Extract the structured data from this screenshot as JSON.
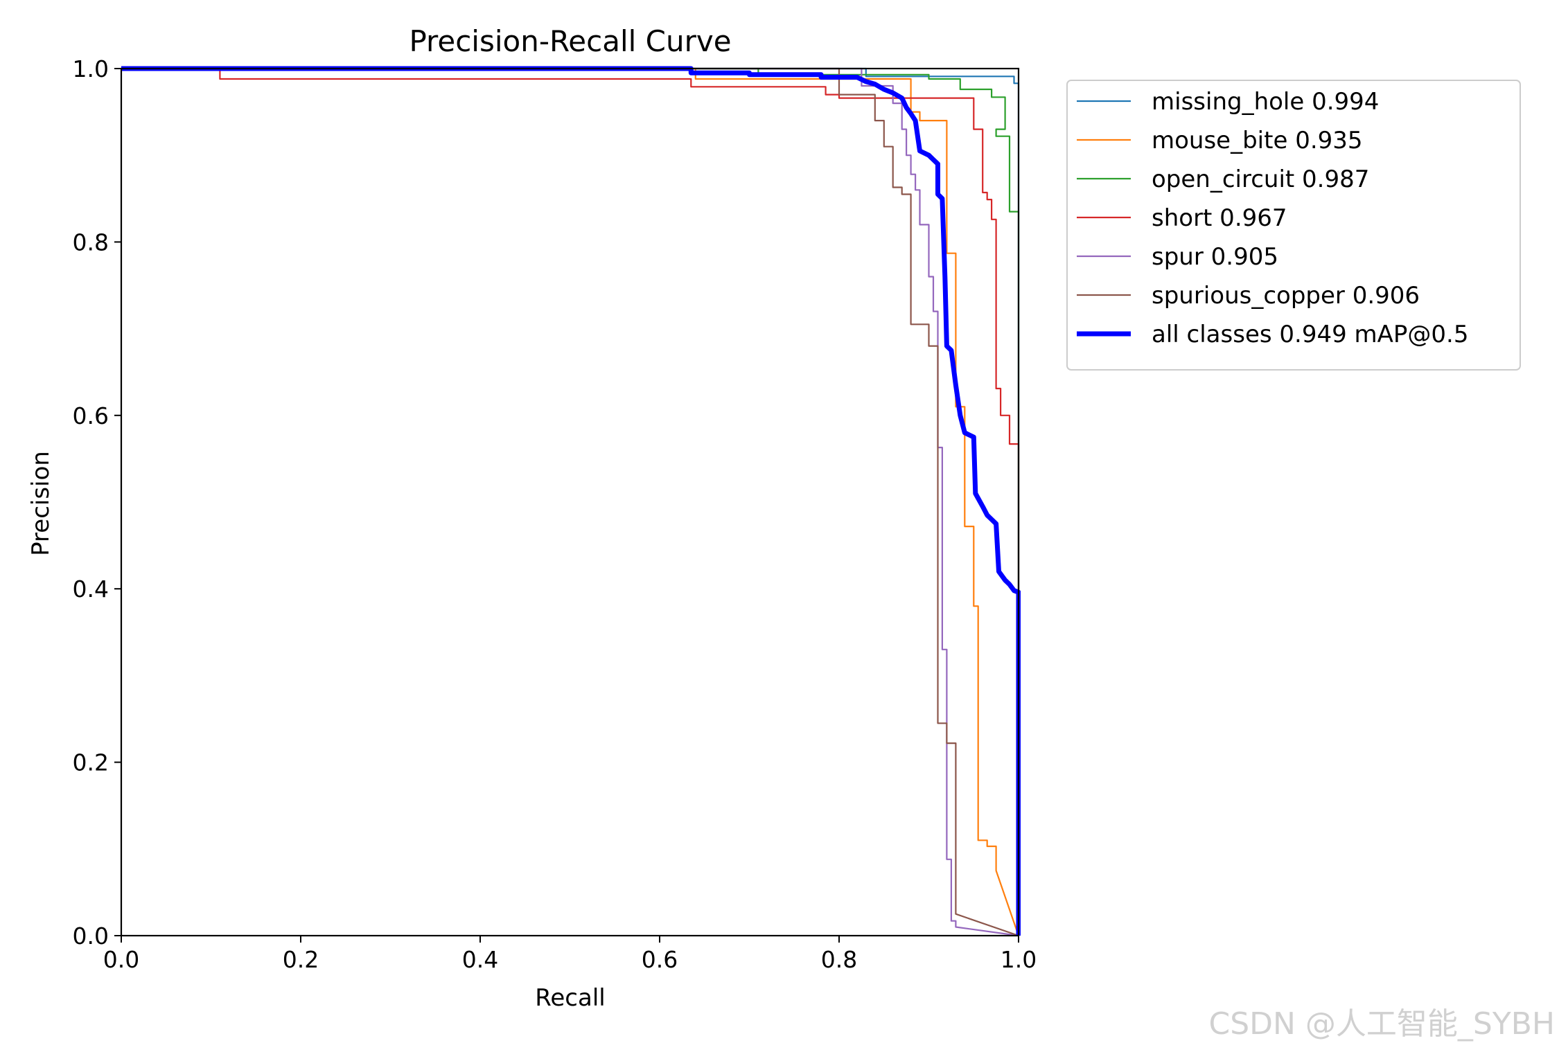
{
  "watermark": "CSDN @人工智能_SYBH",
  "chart_data": {
    "type": "line",
    "title": "Precision-Recall Curve",
    "xlabel": "Recall",
    "ylabel": "Precision",
    "xlim": [
      0,
      1
    ],
    "ylim": [
      0,
      1
    ],
    "xticks": [
      "0.0",
      "0.2",
      "0.4",
      "0.6",
      "0.8",
      "1.0"
    ],
    "yticks": [
      "0.0",
      "0.2",
      "0.4",
      "0.6",
      "0.8",
      "1.0"
    ],
    "grid": false,
    "legend_position": "outside-right",
    "series": [
      {
        "name": "missing_hole 0.994",
        "color": "#1f77b4",
        "width": "thin",
        "points": [
          [
            0,
            1
          ],
          [
            0.83,
            1
          ],
          [
            0.83,
            0.991
          ],
          [
            0.995,
            0.991
          ],
          [
            0.995,
            0.983
          ],
          [
            1.0,
            0.983
          ],
          [
            1.0,
            0.0
          ]
        ]
      },
      {
        "name": "mouse_bite 0.935",
        "color": "#ff7f0e",
        "width": "thin",
        "points": [
          [
            0,
            1
          ],
          [
            0.64,
            1
          ],
          [
            0.64,
            0.988
          ],
          [
            0.88,
            0.988
          ],
          [
            0.88,
            0.95
          ],
          [
            0.89,
            0.95
          ],
          [
            0.89,
            0.94
          ],
          [
            0.92,
            0.94
          ],
          [
            0.92,
            0.787
          ],
          [
            0.93,
            0.787
          ],
          [
            0.93,
            0.61
          ],
          [
            0.94,
            0.61
          ],
          [
            0.94,
            0.472
          ],
          [
            0.95,
            0.472
          ],
          [
            0.95,
            0.385
          ],
          [
            0.95,
            0.38
          ],
          [
            0.955,
            0.38
          ],
          [
            0.955,
            0.11
          ],
          [
            0.965,
            0.11
          ],
          [
            0.965,
            0.103
          ],
          [
            0.975,
            0.103
          ],
          [
            0.975,
            0.075
          ],
          [
            1.0,
            0.0
          ]
        ]
      },
      {
        "name": "open_circuit 0.987",
        "color": "#2ca02c",
        "width": "thin",
        "points": [
          [
            0,
            1
          ],
          [
            0.71,
            1
          ],
          [
            0.71,
            0.993
          ],
          [
            0.9,
            0.993
          ],
          [
            0.9,
            0.988
          ],
          [
            0.935,
            0.988
          ],
          [
            0.935,
            0.976
          ],
          [
            0.97,
            0.976
          ],
          [
            0.97,
            0.967
          ],
          [
            0.985,
            0.967
          ],
          [
            0.985,
            0.93
          ],
          [
            0.975,
            0.93
          ],
          [
            0.975,
            0.922
          ],
          [
            0.99,
            0.922
          ],
          [
            0.99,
            0.868
          ],
          [
            0.99,
            0.835
          ],
          [
            1.0,
            0.835
          ],
          [
            1.0,
            0.57
          ],
          [
            1.0,
            0.0
          ]
        ]
      },
      {
        "name": "short 0.967",
        "color": "#d62728",
        "width": "thin",
        "points": [
          [
            0,
            1
          ],
          [
            0.11,
            1
          ],
          [
            0.11,
            0.988
          ],
          [
            0.635,
            0.988
          ],
          [
            0.635,
            0.979
          ],
          [
            0.785,
            0.979
          ],
          [
            0.785,
            0.97
          ],
          [
            0.8,
            0.97
          ],
          [
            0.8,
            0.966
          ],
          [
            0.95,
            0.966
          ],
          [
            0.95,
            0.93
          ],
          [
            0.96,
            0.93
          ],
          [
            0.96,
            0.857
          ],
          [
            0.965,
            0.857
          ],
          [
            0.965,
            0.849
          ],
          [
            0.97,
            0.849
          ],
          [
            0.97,
            0.826
          ],
          [
            0.975,
            0.826
          ],
          [
            0.975,
            0.631
          ],
          [
            0.98,
            0.631
          ],
          [
            0.98,
            0.6
          ],
          [
            0.99,
            0.6
          ],
          [
            0.99,
            0.567
          ],
          [
            1.0,
            0.567
          ],
          [
            1.0,
            0.0
          ]
        ]
      },
      {
        "name": "spur 0.905",
        "color": "#9467bd",
        "width": "thin",
        "points": [
          [
            0,
            1
          ],
          [
            0.825,
            1
          ],
          [
            0.825,
            0.98
          ],
          [
            0.86,
            0.98
          ],
          [
            0.86,
            0.96
          ],
          [
            0.87,
            0.96
          ],
          [
            0.87,
            0.93
          ],
          [
            0.875,
            0.93
          ],
          [
            0.875,
            0.9
          ],
          [
            0.88,
            0.9
          ],
          [
            0.88,
            0.878
          ],
          [
            0.885,
            0.878
          ],
          [
            0.885,
            0.86
          ],
          [
            0.89,
            0.86
          ],
          [
            0.89,
            0.82
          ],
          [
            0.9,
            0.82
          ],
          [
            0.9,
            0.76
          ],
          [
            0.905,
            0.76
          ],
          [
            0.905,
            0.72
          ],
          [
            0.91,
            0.72
          ],
          [
            0.91,
            0.563
          ],
          [
            0.915,
            0.563
          ],
          [
            0.915,
            0.33
          ],
          [
            0.92,
            0.33
          ],
          [
            0.92,
            0.088
          ],
          [
            0.925,
            0.088
          ],
          [
            0.925,
            0.017
          ],
          [
            0.93,
            0.017
          ],
          [
            0.93,
            0.01
          ],
          [
            1.0,
            0.0
          ]
        ]
      },
      {
        "name": "spurious_copper 0.906",
        "color": "#8c564b",
        "width": "thin",
        "points": [
          [
            0,
            1
          ],
          [
            0.8,
            1
          ],
          [
            0.8,
            0.97
          ],
          [
            0.84,
            0.97
          ],
          [
            0.84,
            0.94
          ],
          [
            0.85,
            0.94
          ],
          [
            0.85,
            0.91
          ],
          [
            0.86,
            0.91
          ],
          [
            0.86,
            0.863
          ],
          [
            0.87,
            0.863
          ],
          [
            0.87,
            0.855
          ],
          [
            0.88,
            0.855
          ],
          [
            0.88,
            0.705
          ],
          [
            0.9,
            0.705
          ],
          [
            0.9,
            0.68
          ],
          [
            0.91,
            0.68
          ],
          [
            0.91,
            0.245
          ],
          [
            0.92,
            0.245
          ],
          [
            0.92,
            0.222
          ],
          [
            0.93,
            0.222
          ],
          [
            0.93,
            0.025
          ],
          [
            1.0,
            0.0
          ]
        ]
      },
      {
        "name": "all classes 0.949 mAP@0.5",
        "color": "#0000ff",
        "width": "thick",
        "points": [
          [
            0,
            1
          ],
          [
            0.635,
            1
          ],
          [
            0.635,
            0.995
          ],
          [
            0.7,
            0.995
          ],
          [
            0.7,
            0.993
          ],
          [
            0.78,
            0.993
          ],
          [
            0.78,
            0.99
          ],
          [
            0.82,
            0.99
          ],
          [
            0.83,
            0.985
          ],
          [
            0.84,
            0.982
          ],
          [
            0.85,
            0.976
          ],
          [
            0.86,
            0.972
          ],
          [
            0.87,
            0.966
          ],
          [
            0.875,
            0.955
          ],
          [
            0.88,
            0.948
          ],
          [
            0.885,
            0.94
          ],
          [
            0.89,
            0.905
          ],
          [
            0.9,
            0.9
          ],
          [
            0.905,
            0.895
          ],
          [
            0.91,
            0.89
          ],
          [
            0.91,
            0.855
          ],
          [
            0.915,
            0.85
          ],
          [
            0.918,
            0.76
          ],
          [
            0.92,
            0.68
          ],
          [
            0.925,
            0.675
          ],
          [
            0.93,
            0.635
          ],
          [
            0.935,
            0.6
          ],
          [
            0.94,
            0.58
          ],
          [
            0.95,
            0.575
          ],
          [
            0.952,
            0.51
          ],
          [
            0.96,
            0.495
          ],
          [
            0.965,
            0.485
          ],
          [
            0.97,
            0.48
          ],
          [
            0.975,
            0.475
          ],
          [
            0.978,
            0.42
          ],
          [
            0.985,
            0.41
          ],
          [
            0.99,
            0.405
          ],
          [
            0.995,
            0.398
          ],
          [
            1.0,
            0.396
          ],
          [
            1.0,
            0.0
          ]
        ]
      }
    ]
  }
}
